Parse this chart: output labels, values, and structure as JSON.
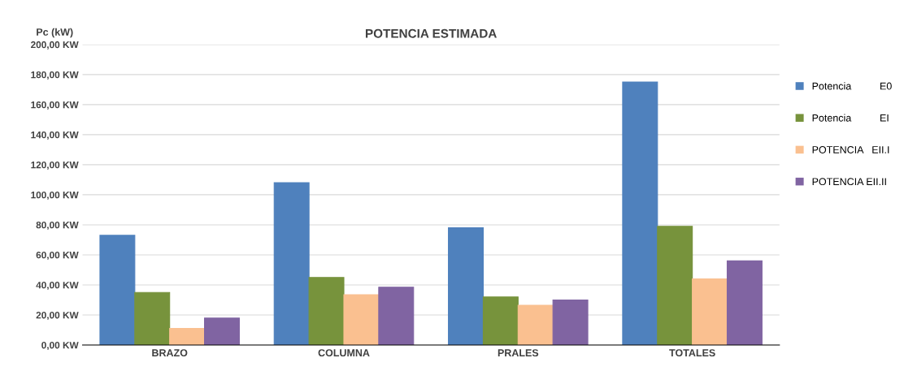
{
  "chart_data": {
    "type": "bar",
    "title": "POTENCIA ESTIMADA",
    "ylabel": "Pc (kW)",
    "categories": [
      "BRAZO",
      "COLUMNA",
      "PRALES",
      "TOTALES"
    ],
    "series": [
      {
        "name": "Potencia          E0",
        "color": "#4f81bd",
        "values": [
          73,
          108,
          78,
          175
        ]
      },
      {
        "name": "Potencia          EI",
        "color": "#77933c",
        "values": [
          35,
          45,
          32,
          79
        ]
      },
      {
        "name": "POTENCIA   EII.I",
        "color": "#fac090",
        "values": [
          11,
          33.5,
          26.5,
          44
        ]
      },
      {
        "name": "POTENCIA EII.II",
        "color": "#8064a2",
        "values": [
          18,
          38.5,
          30,
          56
        ]
      }
    ],
    "ylim": [
      0,
      200
    ],
    "yticks": [
      {
        "value": 0,
        "label": "0,00 KW"
      },
      {
        "value": 20,
        "label": "20,00 KW"
      },
      {
        "value": 40,
        "label": "40,00 KW"
      },
      {
        "value": 60,
        "label": "60,00 KW"
      },
      {
        "value": 80,
        "label": "80,00 KW"
      },
      {
        "value": 100,
        "label": "100,00 KW"
      },
      {
        "value": 120,
        "label": "120,00 KW"
      },
      {
        "value": 140,
        "label": "140,00 KW"
      },
      {
        "value": 160,
        "label": "160,00 KW"
      },
      {
        "value": 180,
        "label": "180,00 KW"
      },
      {
        "value": 200,
        "label": "200,00 KW"
      }
    ],
    "grid": "y",
    "legend": "right"
  }
}
